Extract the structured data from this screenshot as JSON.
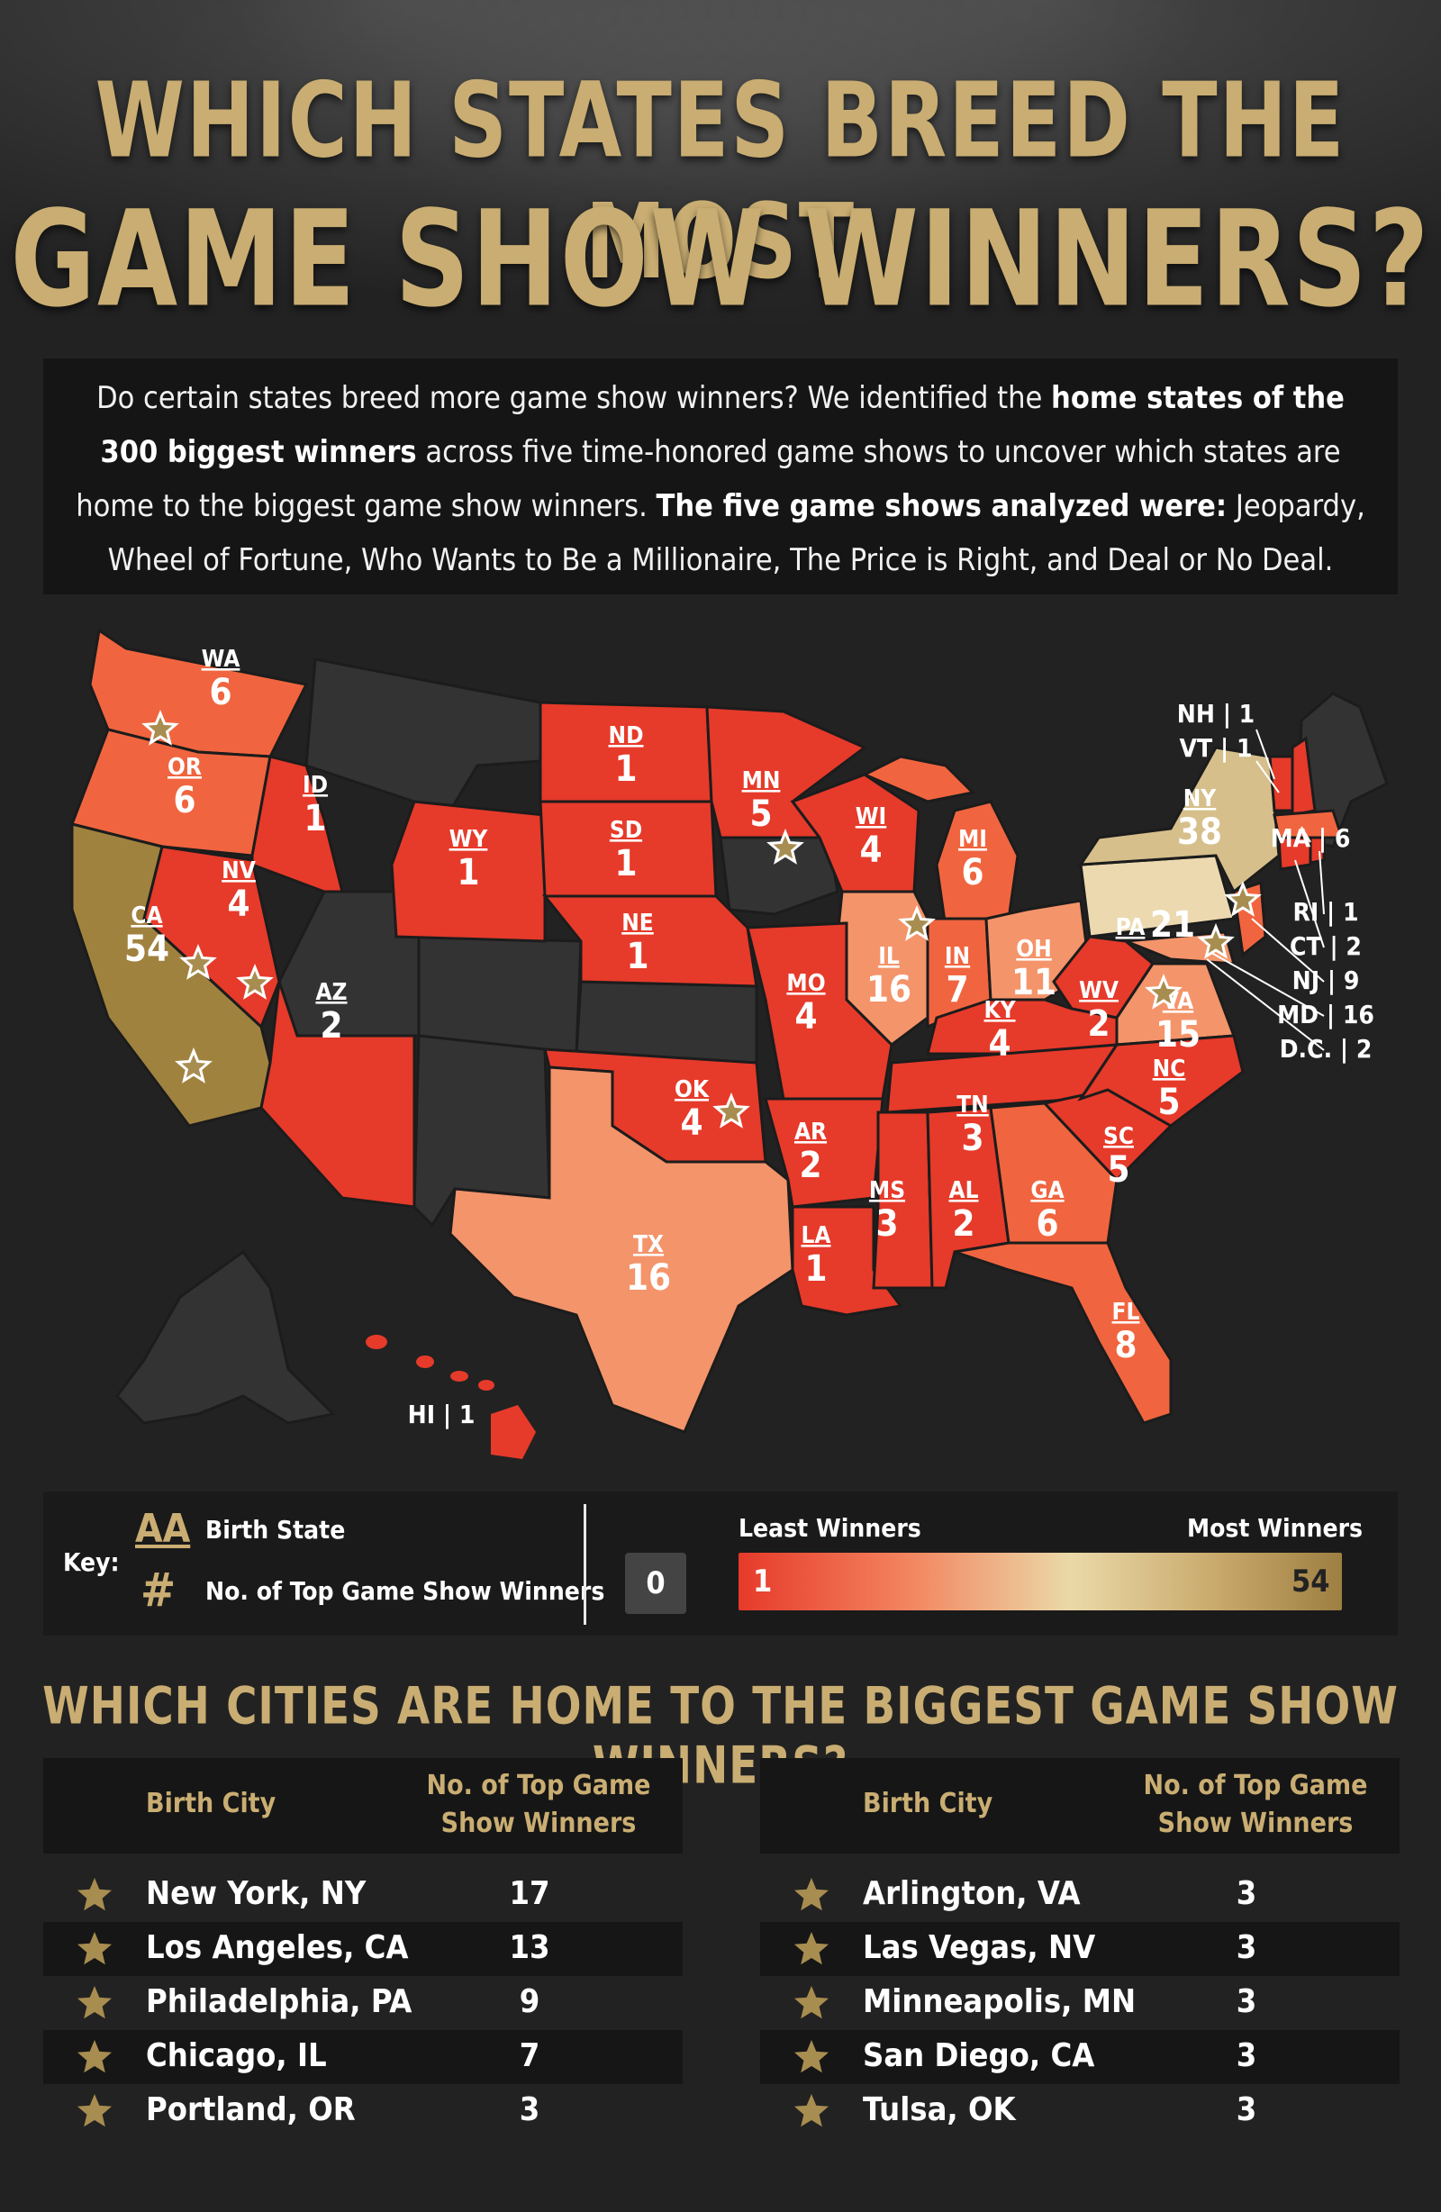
{
  "header": {
    "title_line1": "WHICH STATES BREED THE MOST",
    "title_line2": "GAME SHOW WINNERS?"
  },
  "intro": {
    "p1": "Do certain states breed more game show winners? We identified the ",
    "b1": "home states of the 300 biggest winners",
    "p2": " across five time-honored game shows to uncover which states are home to the biggest game show winners. ",
    "b2": "The five game shows analyzed were:",
    "p3": " Jeopardy, Wheel of Fortune, Who Wants to Be a Millionaire, The Price is Right, and Deal or No Deal."
  },
  "map": {
    "color_scale": {
      "min": "#e63a2a",
      "mid": "#ead9a8",
      "max": "#9d7f42",
      "none": "#333333"
    },
    "states": [
      {
        "abbr": "WA",
        "value": "6"
      },
      {
        "abbr": "OR",
        "value": "6"
      },
      {
        "abbr": "CA",
        "value": "54"
      },
      {
        "abbr": "ID",
        "value": "1"
      },
      {
        "abbr": "NV",
        "value": "4"
      },
      {
        "abbr": "AZ",
        "value": "2"
      },
      {
        "abbr": "WY",
        "value": "1"
      },
      {
        "abbr": "ND",
        "value": "1"
      },
      {
        "abbr": "SD",
        "value": "1"
      },
      {
        "abbr": "NE",
        "value": "1"
      },
      {
        "abbr": "MN",
        "value": "5"
      },
      {
        "abbr": "WI",
        "value": "4"
      },
      {
        "abbr": "MI",
        "value": "6"
      },
      {
        "abbr": "IL",
        "value": "16"
      },
      {
        "abbr": "IN",
        "value": "7"
      },
      {
        "abbr": "OH",
        "value": "11"
      },
      {
        "abbr": "PA",
        "value": "21"
      },
      {
        "abbr": "NY",
        "value": "38"
      },
      {
        "abbr": "MO",
        "value": "4"
      },
      {
        "abbr": "KY",
        "value": "4"
      },
      {
        "abbr": "WV",
        "value": "2"
      },
      {
        "abbr": "VA",
        "value": "15"
      },
      {
        "abbr": "OK",
        "value": "4"
      },
      {
        "abbr": "AR",
        "value": "2"
      },
      {
        "abbr": "TN",
        "value": "3"
      },
      {
        "abbr": "NC",
        "value": "5"
      },
      {
        "abbr": "SC",
        "value": "5"
      },
      {
        "abbr": "TX",
        "value": "16"
      },
      {
        "abbr": "LA",
        "value": "1"
      },
      {
        "abbr": "MS",
        "value": "3"
      },
      {
        "abbr": "AL",
        "value": "2"
      },
      {
        "abbr": "GA",
        "value": "6"
      },
      {
        "abbr": "FL",
        "value": "8"
      }
    ],
    "callouts": [
      {
        "label": "NH | 1"
      },
      {
        "label": "VT | 1"
      },
      {
        "label": "MA | 6"
      },
      {
        "label": "RI | 1"
      },
      {
        "label": "CT | 2"
      },
      {
        "label": "NJ | 9"
      },
      {
        "label": "MD | 16"
      },
      {
        "label": "D.C. | 2"
      },
      {
        "label": "HI | 1"
      }
    ]
  },
  "key": {
    "title": "Key:",
    "abbr_symbol": "AA",
    "abbr_label": "Birth State",
    "num_symbol": "#",
    "num_label": "No. of Top Game Show Winners",
    "zero": "0",
    "least_label": "Least Winners",
    "most_label": "Most Winners",
    "min_value": "1",
    "max_value": "54"
  },
  "cities": {
    "title": "WHICH CITIES ARE HOME TO THE BIGGEST GAME SHOW WINNERS?",
    "col_city": "Birth City",
    "col_count_line1": "No. of Top Game",
    "col_count_line2": "Show Winners",
    "left": [
      {
        "city": "New York, NY",
        "count": "17"
      },
      {
        "city": "Los Angeles, CA",
        "count": "13"
      },
      {
        "city": "Philadelphia, PA",
        "count": "9"
      },
      {
        "city": "Chicago, IL",
        "count": "7"
      },
      {
        "city": "Portland, OR",
        "count": "3"
      }
    ],
    "right": [
      {
        "city": "Arlington, VA",
        "count": "3"
      },
      {
        "city": "Las Vegas, NV",
        "count": "3"
      },
      {
        "city": "Minneapolis, MN",
        "count": "3"
      },
      {
        "city": "San Diego, CA",
        "count": "3"
      },
      {
        "city": "Tulsa, OK",
        "count": "3"
      }
    ]
  }
}
